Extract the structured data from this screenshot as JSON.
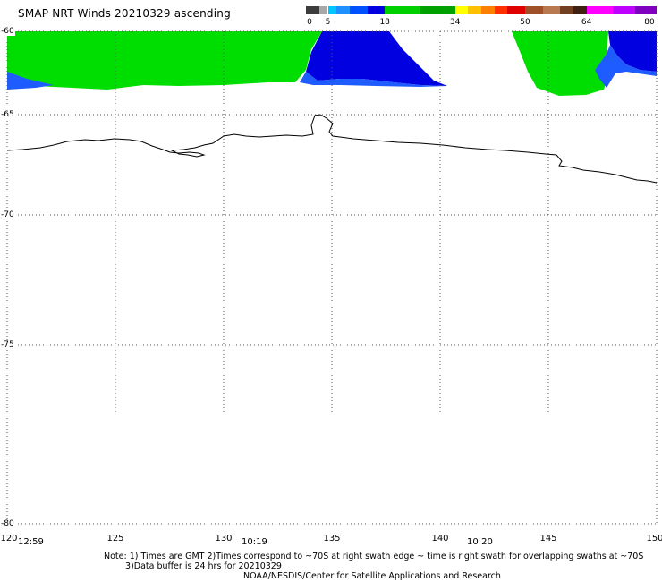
{
  "title": "SMAP NRT Winds 20210329 ascending",
  "colorbar": {
    "labels": [
      "0",
      "5",
      "18",
      "34",
      "50",
      "64",
      "80"
    ],
    "min": 0,
    "max": 80,
    "segments": [
      {
        "from": 0,
        "to": 3,
        "color": "#3c3c3c"
      },
      {
        "from": 3,
        "to": 5,
        "color": "#a8a8a8"
      },
      {
        "from": 5,
        "to": 7,
        "color": "#00c8ff"
      },
      {
        "from": 7,
        "to": 10,
        "color": "#1e90ff"
      },
      {
        "from": 10,
        "to": 14,
        "color": "#0050ff"
      },
      {
        "from": 14,
        "to": 18,
        "color": "#0000e0"
      },
      {
        "from": 18,
        "to": 26,
        "color": "#00d000"
      },
      {
        "from": 26,
        "to": 34,
        "color": "#00a000"
      },
      {
        "from": 34,
        "to": 37,
        "color": "#ffff00"
      },
      {
        "from": 37,
        "to": 40,
        "color": "#ffc000"
      },
      {
        "from": 40,
        "to": 43,
        "color": "#ff8000"
      },
      {
        "from": 43,
        "to": 46,
        "color": "#ff3000"
      },
      {
        "from": 46,
        "to": 50,
        "color": "#e00000"
      },
      {
        "from": 50,
        "to": 54,
        "color": "#a05028"
      },
      {
        "from": 54,
        "to": 58,
        "color": "#b87850"
      },
      {
        "from": 58,
        "to": 61,
        "color": "#704020"
      },
      {
        "from": 61,
        "to": 64,
        "color": "#402010"
      },
      {
        "from": 64,
        "to": 70,
        "color": "#ff00ff"
      },
      {
        "from": 70,
        "to": 75,
        "color": "#c000ff"
      },
      {
        "from": 75,
        "to": 80,
        "color": "#8000c0"
      }
    ]
  },
  "map": {
    "lat_labels": [
      "-60",
      "-65",
      "-70",
      "-75",
      "-80"
    ],
    "lon_labels": [
      "120",
      "125",
      "130",
      "135",
      "140",
      "145",
      "150"
    ],
    "time_labels": [
      "12:59",
      "10:19",
      "10:20"
    ],
    "colors": {
      "strong_green": "#00dd00",
      "blue": "#0000e0",
      "light_blue": "#1e5cff",
      "coast": "#000000",
      "grid": "#555555"
    }
  },
  "notes": {
    "line1": "Note: 1) Times are GMT 2)Times correspond to ~70S at right swath edge ~ time is right swath for overlapping swaths at ~70S",
    "line2": "3)Data buffer is 24 hrs for 20210329",
    "line3": "NOAA/NESDIS/Center for Satellite Applications and Research"
  }
}
